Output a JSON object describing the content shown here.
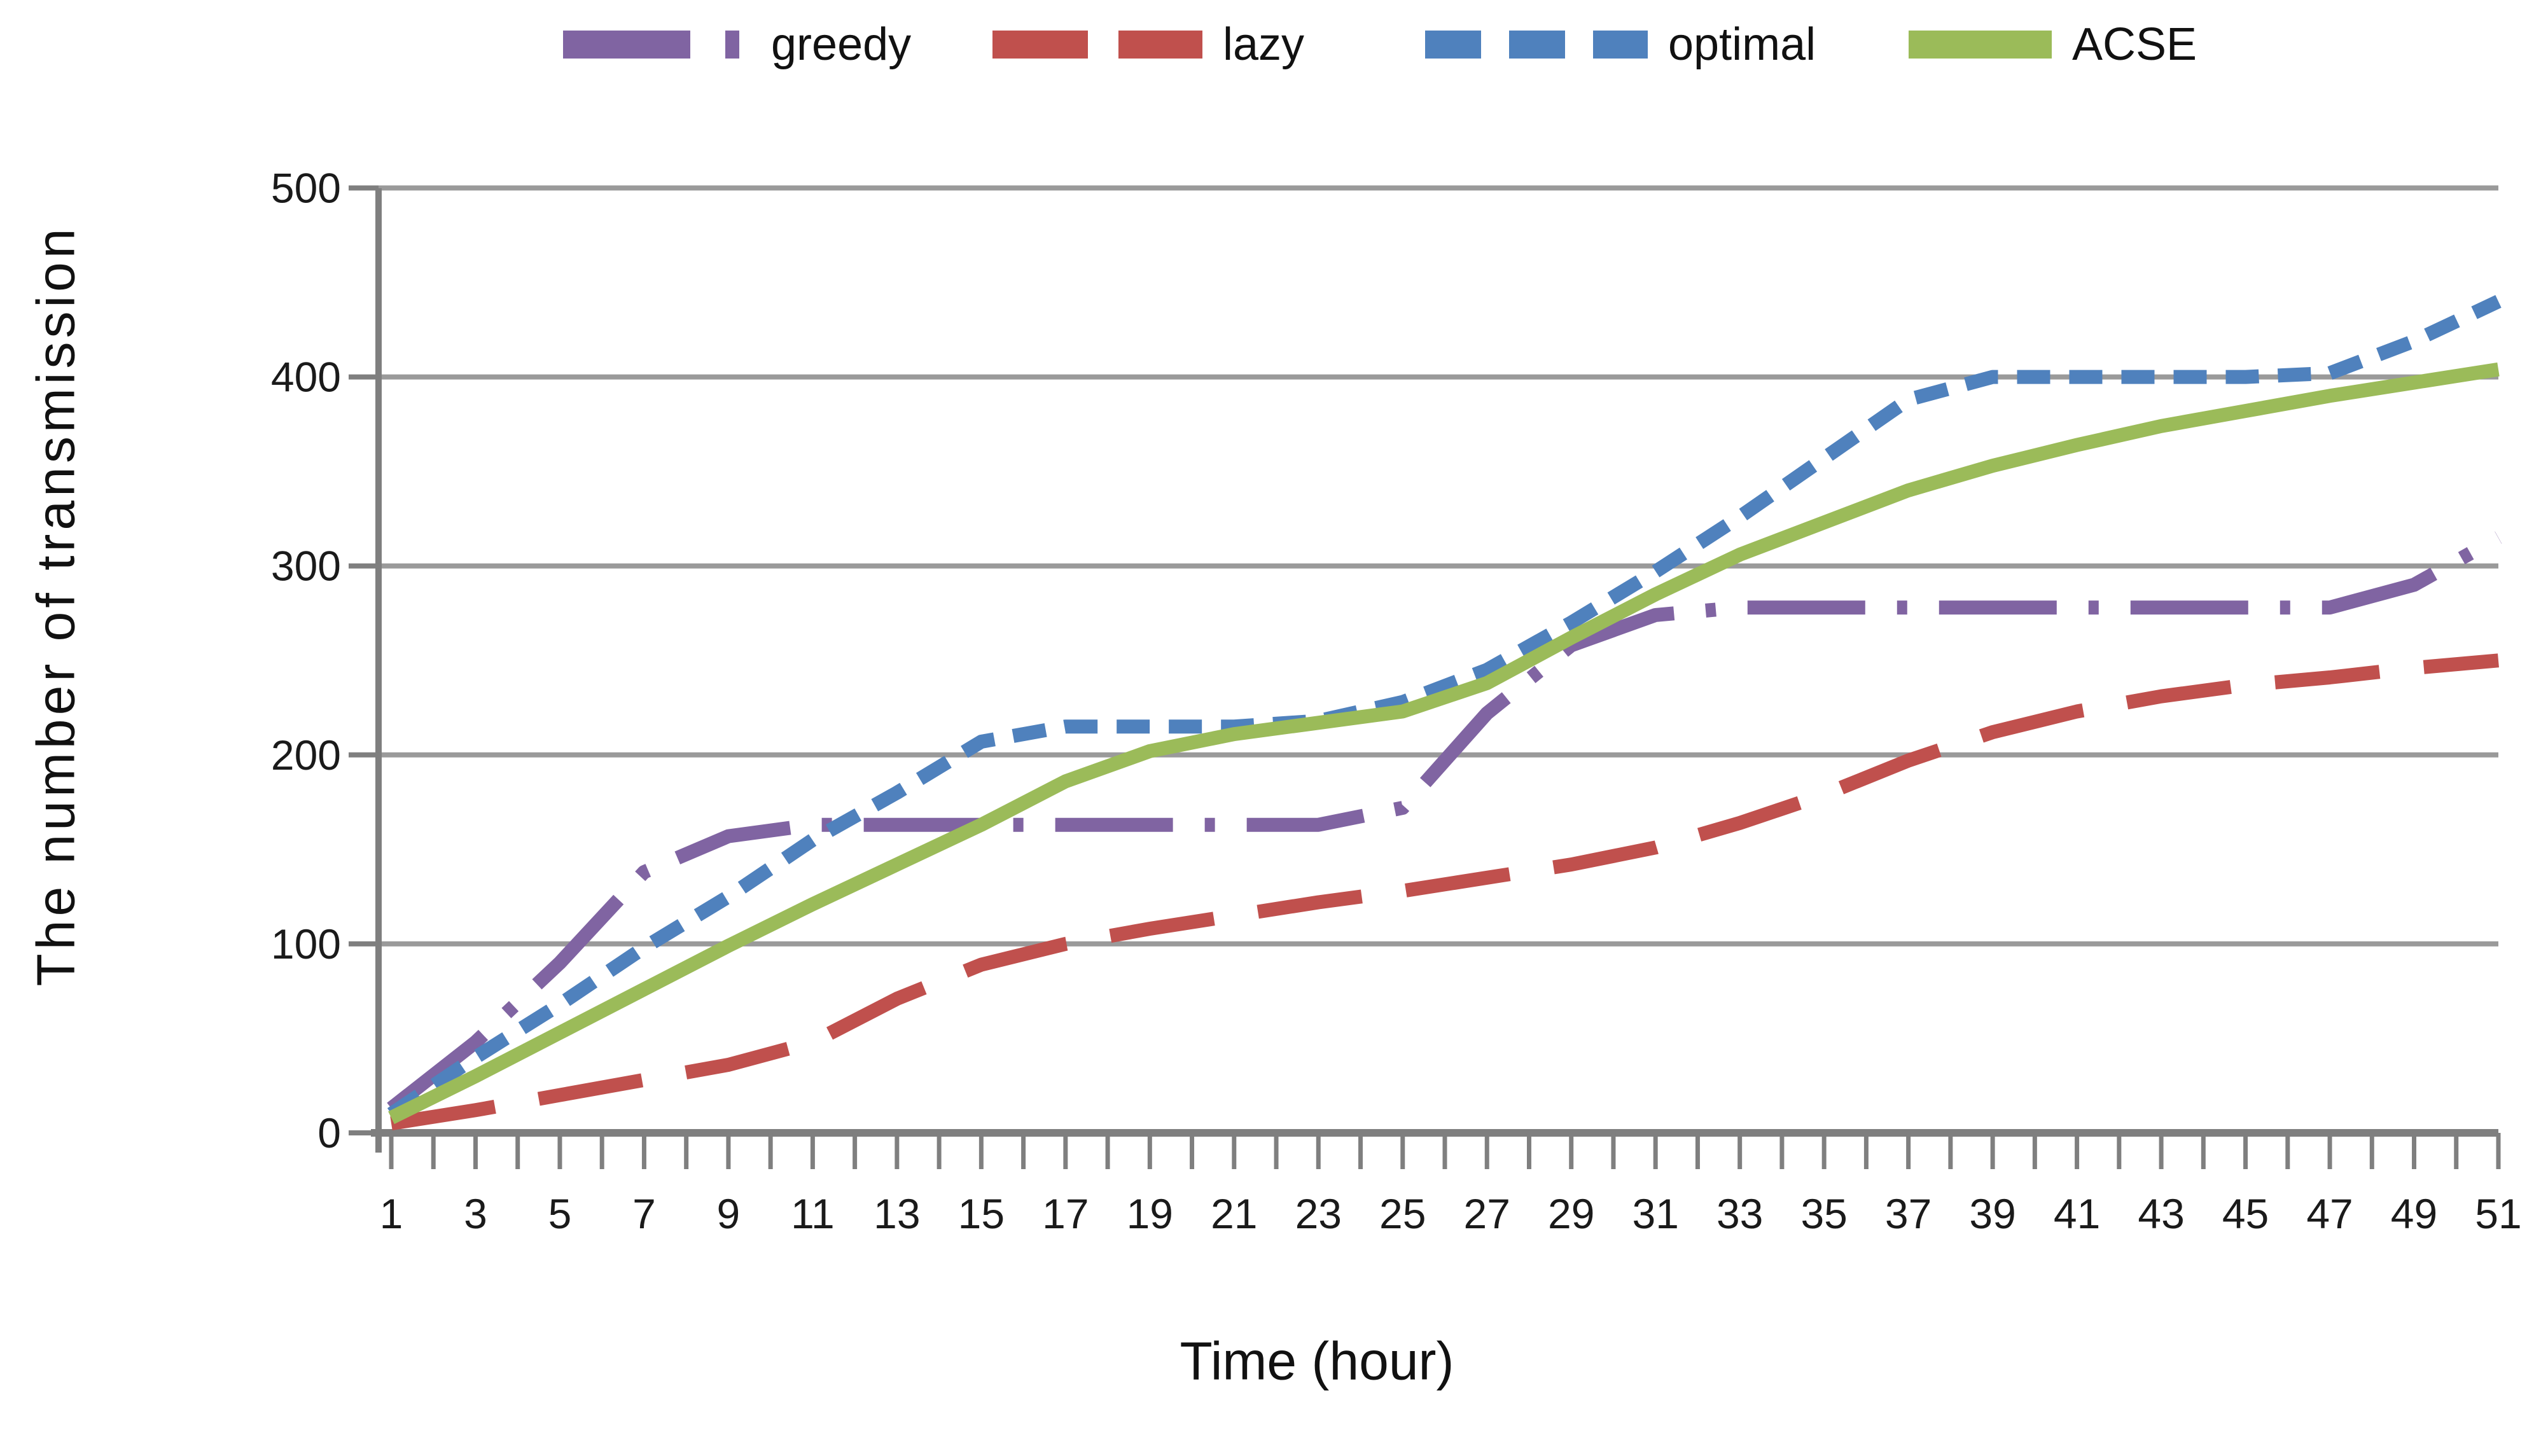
{
  "chart_data": {
    "type": "line",
    "title": "",
    "xlabel": "Time (hour)",
    "ylabel": "The number of transmission",
    "x": [
      1,
      3,
      5,
      7,
      9,
      11,
      13,
      15,
      17,
      19,
      21,
      23,
      25,
      27,
      29,
      31,
      33,
      35,
      37,
      39,
      41,
      43,
      45,
      47,
      49,
      51
    ],
    "x_tick_labels": [
      "1",
      "3",
      "5",
      "7",
      "9",
      "11",
      "13",
      "15",
      "17",
      "19",
      "21",
      "23",
      "25",
      "27",
      "29",
      "31",
      "33",
      "35",
      "37",
      "39",
      "41",
      "43",
      "45",
      "47",
      "49",
      "51"
    ],
    "y_ticks": [
      "0",
      "100",
      "200",
      "300",
      "400",
      "500"
    ],
    "xlim": [
      1,
      51
    ],
    "ylim": [
      0,
      500
    ],
    "grid": "horizontal",
    "legend_position": "top",
    "axis_color": "#7f7f7f",
    "gridline_color": "#9a9a9a",
    "series": [
      {
        "name": "greedy",
        "color": "#8064A2",
        "line_style": "dash-dot",
        "values": [
          13,
          48,
          90,
          138,
          157,
          163,
          163,
          163,
          163,
          163,
          163,
          163,
          172,
          222,
          258,
          274,
          278,
          278,
          278,
          278,
          278,
          278,
          278,
          278,
          290,
          315
        ]
      },
      {
        "name": "lazy",
        "color": "#C0504D",
        "line_style": "dashed",
        "values": [
          5,
          12,
          20,
          28,
          36,
          48,
          71,
          89,
          100,
          108,
          115,
          122,
          128,
          135,
          142,
          151,
          164,
          179,
          197,
          212,
          223,
          231,
          237,
          241,
          246,
          250
        ]
      },
      {
        "name": "optimal",
        "color": "#4F81BD",
        "line_style": "short-dash",
        "values": [
          10,
          40,
          68,
          98,
          125,
          155,
          180,
          207,
          215,
          215,
          215,
          218,
          228,
          245,
          270,
          297,
          326,
          357,
          388,
          400,
          400,
          400,
          400,
          402,
          419,
          440
        ]
      },
      {
        "name": "ACSE",
        "color": "#9BBB59",
        "line_style": "solid",
        "values": [
          8,
          30,
          53,
          76,
          99,
          121,
          142,
          163,
          186,
          202,
          211,
          217,
          223,
          238,
          262,
          285,
          306,
          323,
          340,
          353,
          364,
          374,
          382,
          390,
          397,
          404
        ]
      }
    ]
  }
}
